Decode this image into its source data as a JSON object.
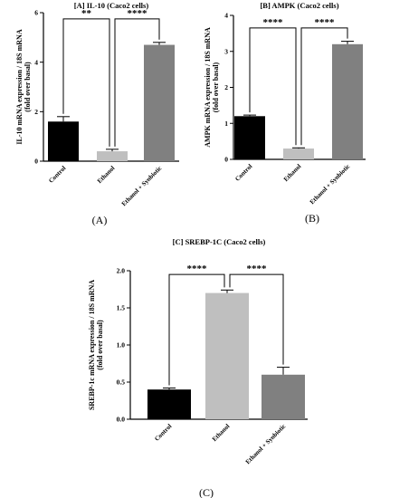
{
  "chart_data": [
    {
      "type": "bar",
      "title": "[A] IL-10 (Caco2 cells)",
      "ylabel_lines": [
        "IL-10 mRNA expression / 18S mRNA",
        "(fold over basal)"
      ],
      "xlabel": "",
      "panel_label": "(A)",
      "categories": [
        "Control",
        "Ethanol",
        "Ethanol + Synbiotic"
      ],
      "values": [
        1.6,
        0.4,
        4.7
      ],
      "errors": [
        0.2,
        0.08,
        0.1
      ],
      "colors": [
        "#000000",
        "#bfbfbf",
        "#808080"
      ],
      "ylim": [
        0,
        6
      ],
      "yticks": [
        0,
        2,
        4,
        6
      ],
      "grid": false,
      "significance": [
        {
          "from": 0,
          "to": 1,
          "label": "**",
          "level": 5.75
        },
        {
          "from": 1,
          "to": 2,
          "label": "****",
          "level": 5.75
        }
      ]
    },
    {
      "type": "bar",
      "title": "[B] AMPK (Caco2 cells)",
      "ylabel_lines": [
        "AMPK mRNA expression / 18S mRNA",
        "(fold over basal)"
      ],
      "xlabel": "",
      "panel_label": "(B)",
      "categories": [
        "Control",
        "Ethanol",
        "Ethanol + Synbiotic"
      ],
      "values": [
        1.2,
        0.3,
        3.2
      ],
      "errors": [
        0.03,
        0.02,
        0.08
      ],
      "colors": [
        "#000000",
        "#bfbfbf",
        "#808080"
      ],
      "ylim": [
        0,
        4
      ],
      "yticks": [
        0,
        1,
        2,
        3,
        4
      ],
      "grid": false,
      "significance": [
        {
          "from": 0,
          "to": 1,
          "label": "****",
          "level": 3.65
        },
        {
          "from": 1,
          "to": 2,
          "label": "****",
          "level": 3.65
        }
      ]
    },
    {
      "type": "bar",
      "title": "[C] SREBP-1C (Caco2 cells)",
      "ylabel_lines": [
        "SREBP-1c mRNA expression / 18S mRNA",
        "(fold over basal)"
      ],
      "xlabel": "",
      "panel_label": "(C)",
      "categories": [
        "Control",
        "Ethanol",
        "Ethanol + Synbiotic"
      ],
      "values": [
        0.4,
        1.7,
        0.6
      ],
      "errors": [
        0.02,
        0.04,
        0.1
      ],
      "colors": [
        "#000000",
        "#bfbfbf",
        "#808080"
      ],
      "ylim": [
        0,
        2.0
      ],
      "yticks": [
        0.0,
        0.5,
        1.0,
        1.5,
        2.0
      ],
      "ytick_labels": [
        "0.0",
        "0.5",
        "1.0",
        "1.5",
        "2.0"
      ],
      "grid": false,
      "significance": [
        {
          "from": 0,
          "to": 1,
          "label": "****",
          "level": 1.95
        },
        {
          "from": 1,
          "to": 2,
          "label": "****",
          "level": 1.95
        }
      ]
    }
  ]
}
